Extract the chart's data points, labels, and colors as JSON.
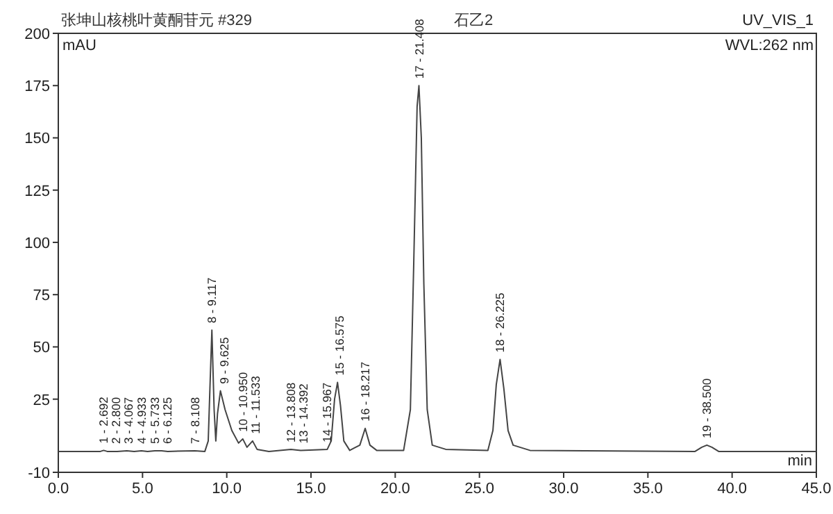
{
  "chart_data": {
    "type": "line",
    "title": "张坤山核桃叶黄酮苷元 #329",
    "subtitle": "石乙2",
    "xlabel": "min",
    "ylabel": "mAU",
    "x": [
      0,
      2.5,
      2.692,
      2.9,
      3.5,
      4.067,
      4.5,
      4.933,
      5.3,
      5.733,
      6.125,
      6.5,
      8.108,
      8.7,
      8.9,
      9.0,
      9.117,
      9.25,
      9.35,
      9.45,
      9.625,
      9.9,
      10.3,
      10.7,
      10.95,
      11.2,
      11.533,
      11.8,
      12.5,
      13.808,
      14.392,
      15.967,
      16.2,
      16.4,
      16.575,
      16.75,
      16.95,
      17.3,
      17.9,
      18.217,
      18.5,
      18.9,
      20.5,
      20.9,
      21.1,
      21.3,
      21.408,
      21.55,
      21.7,
      21.9,
      22.2,
      23,
      25.5,
      25.8,
      26.0,
      26.225,
      26.45,
      26.7,
      27.0,
      28,
      37.8,
      38.2,
      38.5,
      38.8,
      39.2,
      45
    ],
    "series": [
      {
        "color": "#444444",
        "values": [
          0,
          0,
          0.5,
          0,
          0,
          0.3,
          0,
          0.3,
          0,
          0.3,
          0.3,
          0,
          0.3,
          0,
          5,
          30,
          58,
          20,
          5,
          18,
          29,
          20,
          10,
          4,
          6,
          2,
          5,
          1,
          0,
          1,
          0.5,
          1,
          5,
          25,
          33,
          22,
          5,
          0.5,
          3,
          11,
          3,
          0.5,
          0.5,
          20,
          90,
          165,
          175,
          150,
          80,
          20,
          3,
          1,
          0.5,
          10,
          32,
          44,
          30,
          10,
          3,
          0.5,
          0,
          2,
          3,
          2,
          0,
          0
        ]
      }
    ],
    "xlim": [
      0,
      45
    ],
    "xticks": [
      {
        "value": 0,
        "label": "0.0"
      },
      {
        "value": 5,
        "label": "5.0"
      },
      {
        "value": 10,
        "label": "10.0"
      },
      {
        "value": 15,
        "label": "15.0"
      },
      {
        "value": 20,
        "label": "20.0"
      },
      {
        "value": 25,
        "label": "25.0"
      },
      {
        "value": 30,
        "label": "30.0"
      },
      {
        "value": 35,
        "label": "35.0"
      },
      {
        "value": 40,
        "label": "40.0"
      },
      {
        "value": 45,
        "label": "45.0"
      }
    ],
    "ylim": [
      -10,
      200
    ],
    "yticks": [
      -10,
      25,
      50,
      75,
      100,
      125,
      150,
      175,
      200
    ],
    "grid": false,
    "marker": "none",
    "line_style": "solid",
    "annotations": [
      "UV_VIS_1",
      "WVL:262 nm",
      {
        "text": "1 - 2.692",
        "x": 2.692,
        "y": 0.5
      },
      {
        "text": "2 - 2.800",
        "x": 2.8,
        "y": 0.3
      },
      {
        "text": "3 - 4.067",
        "x": 4.067,
        "y": 0.3
      },
      {
        "text": "4 - 4.933",
        "x": 4.933,
        "y": 0.3
      },
      {
        "text": "5 - 5.733",
        "x": 5.733,
        "y": 0.3
      },
      {
        "text": "6 - 6.125",
        "x": 6.125,
        "y": 0.3
      },
      {
        "text": "7 - 8.108",
        "x": 8.108,
        "y": 0.3
      },
      {
        "text": "8 - 9.117",
        "x": 9.117,
        "y": 58
      },
      {
        "text": "9 - 9.625",
        "x": 9.625,
        "y": 29
      },
      {
        "text": "10 - 10.950",
        "x": 10.95,
        "y": 6
      },
      {
        "text": "11 - 11.533",
        "x": 11.533,
        "y": 5
      },
      {
        "text": "12 - 13.808",
        "x": 13.808,
        "y": 1
      },
      {
        "text": "13 - 14.392",
        "x": 14.392,
        "y": 0.5
      },
      {
        "text": "14 - 15.967",
        "x": 15.967,
        "y": 1
      },
      {
        "text": "15 - 16.575",
        "x": 16.575,
        "y": 33
      },
      {
        "text": "16 - 18.217",
        "x": 18.217,
        "y": 11
      },
      {
        "text": "17 - 21.408",
        "x": 21.408,
        "y": 175
      },
      {
        "text": "18 - 26.225",
        "x": 26.225,
        "y": 44
      },
      {
        "text": "19 - 38.500",
        "x": 38.5,
        "y": 3
      }
    ]
  }
}
